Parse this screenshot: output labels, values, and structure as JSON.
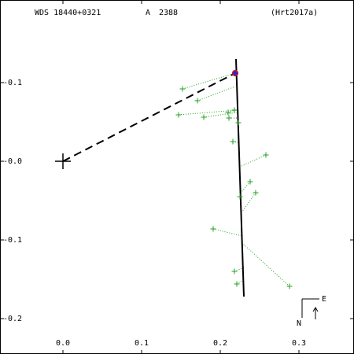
{
  "header": {
    "designation": "WDS 18440+0321",
    "component": "A",
    "number": "2388",
    "reference": "(Hrt2017a)"
  },
  "compass": {
    "east": "E",
    "north": "N"
  },
  "chart_data": {
    "type": "scatter",
    "xlim": [
      -0.08,
      0.37
    ],
    "ylim": [
      -0.245,
      0.205
    ],
    "x_ticks": [
      {
        "v": 0.0,
        "label": "0.0"
      },
      {
        "v": 0.1,
        "label": "0.1"
      },
      {
        "v": 0.2,
        "label": "0.2"
      },
      {
        "v": 0.3,
        "label": "0.3"
      }
    ],
    "y_ticks": [
      {
        "v": 0.1,
        "label": "0.1"
      },
      {
        "v": 0.0,
        "label": "0.0"
      },
      {
        "v": -0.1,
        "label": "0.1"
      },
      {
        "v": -0.2,
        "label": "0.2"
      }
    ],
    "primary": {
      "x": 0.0,
      "y": 0.0
    },
    "orbit_line": [
      {
        "x": 0.22,
        "y": 0.13
      },
      {
        "x": 0.23,
        "y": -0.172
      }
    ],
    "latest_measurement": {
      "x": 0.219,
      "y": 0.112,
      "fill": "#1a2fd6",
      "stroke": "#e01010"
    },
    "observations": [
      {
        "x": 0.152,
        "y": 0.092,
        "fx": 0.219,
        "fy": 0.112
      },
      {
        "x": 0.171,
        "y": 0.077,
        "fx": 0.219,
        "fy": 0.095
      },
      {
        "x": 0.147,
        "y": 0.059,
        "fx": 0.221,
        "fy": 0.065
      },
      {
        "x": 0.179,
        "y": 0.056,
        "fx": 0.221,
        "fy": 0.062
      },
      {
        "x": 0.21,
        "y": 0.062,
        "fx": 0.221,
        "fy": 0.066
      },
      {
        "x": 0.211,
        "y": 0.055,
        "fx": 0.222,
        "fy": 0.055
      },
      {
        "x": 0.218,
        "y": 0.065,
        "fx": 0.221,
        "fy": 0.065
      },
      {
        "x": 0.223,
        "y": 0.049,
        "fx": 0.222,
        "fy": 0.049
      },
      {
        "x": 0.216,
        "y": 0.025,
        "fx": 0.223,
        "fy": 0.024
      },
      {
        "x": 0.258,
        "y": 0.008,
        "fx": 0.225,
        "fy": -0.007
      },
      {
        "x": 0.238,
        "y": -0.026,
        "fx": 0.226,
        "fy": -0.04
      },
      {
        "x": 0.245,
        "y": -0.04,
        "fx": 0.227,
        "fy": -0.065
      },
      {
        "x": 0.225,
        "y": -0.045,
        "fx": 0.226,
        "fy": -0.045
      },
      {
        "x": 0.191,
        "y": -0.086,
        "fx": 0.228,
        "fy": -0.095
      },
      {
        "x": 0.218,
        "y": -0.14,
        "fx": 0.23,
        "fy": -0.135
      },
      {
        "x": 0.221,
        "y": -0.156,
        "fx": 0.231,
        "fy": -0.15
      },
      {
        "x": 0.288,
        "y": -0.159,
        "fx": 0.229,
        "fy": -0.105
      }
    ],
    "colors": {
      "observation": "#22a022",
      "orbit": "#000000",
      "node_line": "#000000"
    },
    "grid": false
  }
}
